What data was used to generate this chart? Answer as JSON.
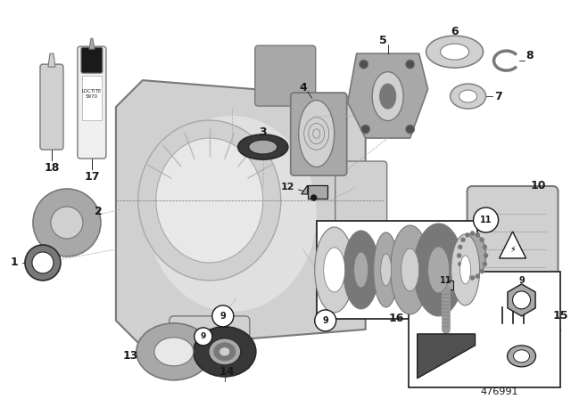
{
  "background_color": "#ffffff",
  "diagram_number": "476991",
  "fig_width": 6.4,
  "fig_height": 4.48,
  "dpi": 100,
  "colors": {
    "gray_vlight": "#e8e8e8",
    "gray_light": "#d0d0d0",
    "gray_mid": "#a8a8a8",
    "gray_dark": "#787878",
    "gray_body": "#b8b8b8",
    "dark_gray": "#505050",
    "black": "#1a1a1a",
    "white": "#ffffff",
    "near_black": "#2a2a2a",
    "seal_dark": "#383838",
    "housing_fill": "#d4d4d4",
    "housing_edge": "#888888",
    "loctite_white": "#f0f0f0",
    "loctite_dark": "#1a1a1a"
  },
  "label_fontsize": 8,
  "label_fontweight": "bold"
}
